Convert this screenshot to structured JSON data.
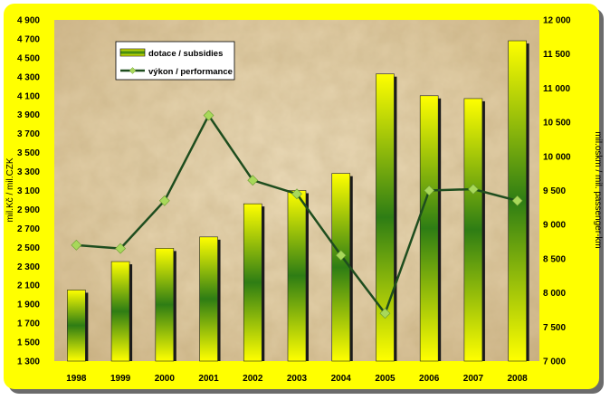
{
  "chart_data": {
    "type": "bar+line",
    "categories": [
      "1998",
      "1999",
      "2000",
      "2001",
      "2002",
      "2003",
      "2004",
      "2005",
      "2006",
      "2007",
      "2008"
    ],
    "series": [
      {
        "name": "dotace / subsidies",
        "kind": "bar",
        "axis": "left",
        "values": [
          2050,
          2350,
          2490,
          2610,
          2960,
          3100,
          3280,
          4330,
          4100,
          4070,
          4680
        ]
      },
      {
        "name": "výkon / performance",
        "kind": "line",
        "axis": "right",
        "values": [
          8700,
          8650,
          9350,
          10600,
          9650,
          9450,
          8550,
          7700,
          9500,
          9520,
          9350
        ]
      }
    ],
    "y_left": {
      "label": "mil.Kč / mil.CZK",
      "ylim": [
        1300,
        4900
      ],
      "ticks": [
        "1 300",
        "1 500",
        "1 700",
        "1 900",
        "2 100",
        "2 300",
        "2 500",
        "2 700",
        "2 900",
        "3 100",
        "3 300",
        "3 500",
        "3 700",
        "3 900",
        "4 100",
        "4 300",
        "4 500",
        "4 700",
        "4 900"
      ]
    },
    "y_right": {
      "label": "mil.oskm / mil. passenger-km",
      "ylim": [
        7000,
        12000
      ],
      "ticks": [
        "7 000",
        "7 500",
        "8 000",
        "8 500",
        "9 000",
        "9 500",
        "10 000",
        "10 500",
        "11 000",
        "11 500",
        "12 000"
      ]
    },
    "legend_position": "top-left",
    "grid": false,
    "colors": {
      "frame": "#ffff00",
      "bar_light": "#ffff00",
      "bar_dark": "#2e7d14",
      "line": "#1e4d1e",
      "marker": "#a8d85a",
      "plot_bg": "#e2cfa8"
    }
  }
}
